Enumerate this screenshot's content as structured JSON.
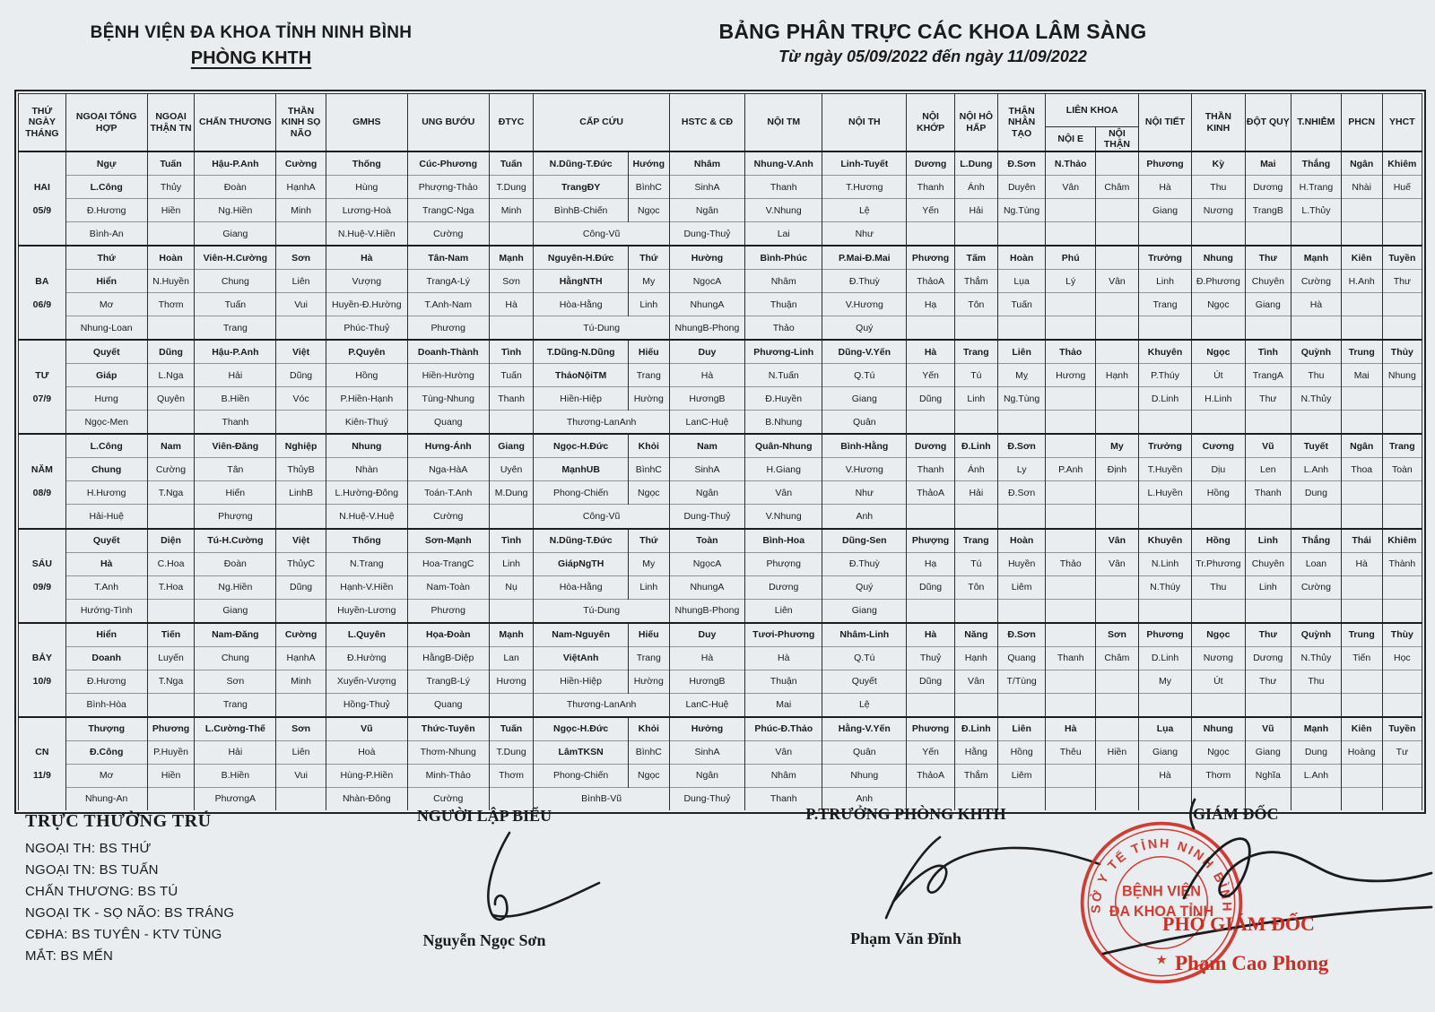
{
  "header": {
    "org": "BỆNH VIỆN ĐA KHOA TỈNH NINH BÌNH",
    "dept": "PHÒNG KHTH",
    "title": "BẢNG PHÂN TRỰC CÁC KHOA LÂM SÀNG",
    "subtitle": "Từ ngày 05/09/2022 đến ngày 11/09/2022"
  },
  "colors": {
    "stamp_red": "#cf2d23",
    "ink": "#1b1b1b",
    "paper": "#e9edf0"
  },
  "table": {
    "headers": [
      "THỨ NGÀY THÁNG",
      "NGOẠI TỔNG HỢP",
      "NGOẠI THẬN TN",
      "CHẤN THƯƠNG",
      "THẦN KINH SỌ NÃO",
      "GMHS",
      "UNG BƯỚU",
      "ĐTYC",
      "CẤP CỨU",
      "HSTC & CĐ",
      "NỘI TM",
      "NỘI TH",
      "NỘI KHỚP",
      "NỘI HÔ HẤP",
      "THẬN NHÂN TẠO",
      "LIÊN KHOA",
      "NỘI E",
      "NỘI THẬN",
      "NỘI TIẾT",
      "THẦN KINH",
      "ĐỘT QUỴ",
      "T.NHIỄM",
      "PHCN",
      "YHCT"
    ],
    "days": [
      {
        "day": "HAI",
        "date": "05/9",
        "rows": [
          [
            "Ngự",
            "Tuấn",
            "Hậu-P.Anh",
            "Cường",
            "Thống",
            "Cúc-Phương",
            "Tuấn",
            "N.Dũng-T.Đức",
            "Hướng",
            "Nhâm",
            "Nhung-V.Anh",
            "Linh-Tuyết",
            "Dương",
            "L.Dung",
            "Đ.Sơn",
            "N.Thảo",
            "",
            "Phương",
            "Kỳ",
            "Mai",
            "Thắng",
            "Ngân",
            "Khiêm"
          ],
          [
            "L.Công",
            "Thủy",
            "Đoàn",
            "HạnhA",
            "Hùng",
            "Phượng-Thảo",
            "T.Dung",
            "TrangĐY",
            "BìnhC",
            "SinhA",
            "Thanh",
            "T.Hương",
            "Thanh",
            "Ánh",
            "Duyên",
            "Vân",
            "Châm",
            "Hà",
            "Thu",
            "Dương",
            "H.Trang",
            "Nhài",
            "Huế"
          ],
          [
            "Đ.Hương",
            "Hiền",
            "Ng.Hiền",
            "Minh",
            "Lương-Hoà",
            "TrangC-Nga",
            "Minh",
            "BìnhB-Chiến",
            "Ngọc",
            "Ngân",
            "V.Nhung",
            "Lệ",
            "Yến",
            "Hải",
            "Ng.Tùng",
            "",
            "",
            "Giang",
            "Nương",
            "TrangB",
            "L.Thủy",
            "",
            ""
          ],
          [
            "Bình-An",
            "",
            "Giang",
            "",
            "N.Huệ-V.Hiền",
            "Cường",
            "",
            "Công-Vũ",
            "",
            "Dung-Thuỷ",
            "Lai",
            "Như",
            "",
            "",
            "",
            "",
            "",
            "",
            "",
            "",
            "",
            "",
            ""
          ]
        ]
      },
      {
        "day": "BA",
        "date": "06/9",
        "rows": [
          [
            "Thứ",
            "Hoàn",
            "Viên-H.Cường",
            "Sơn",
            "Hà",
            "Tân-Nam",
            "Mạnh",
            "Nguyên-H.Đức",
            "Thứ",
            "Hường",
            "Bình-Phúc",
            "P.Mai-Đ.Mai",
            "Phương",
            "Tấm",
            "Hoàn",
            "Phú",
            "",
            "Trưởng",
            "Nhung",
            "Thư",
            "Mạnh",
            "Kiên",
            "Tuyền"
          ],
          [
            "Hiển",
            "N.Huyền",
            "Chung",
            "Liên",
            "Vượng",
            "TrangA-Lý",
            "Sơn",
            "HằngNTH",
            "My",
            "NgọcA",
            "Nhâm",
            "Đ.Thuỳ",
            "ThảoA",
            "Thắm",
            "Lụa",
            "Lý",
            "Vân",
            "Linh",
            "Đ.Phương",
            "Chuyên",
            "Cường",
            "H.Anh",
            "Thư"
          ],
          [
            "Mơ",
            "Thơm",
            "Tuấn",
            "Vui",
            "Huyền-Đ.Hường",
            "T.Anh-Nam",
            "Hà",
            "Hòa-Hằng",
            "Linh",
            "NhungA",
            "Thuận",
            "V.Hương",
            "Hạ",
            "Tôn",
            "Tuấn",
            "",
            "",
            "Trang",
            "Ngọc",
            "Giang",
            "Hà",
            "",
            ""
          ],
          [
            "Nhung-Loan",
            "",
            "Trang",
            "",
            "Phúc-Thuỷ",
            "Phương",
            "",
            "Tú-Dung",
            "",
            "NhungB-Phong",
            "Thảo",
            "Quý",
            "",
            "",
            "",
            "",
            "",
            "",
            "",
            "",
            "",
            "",
            ""
          ]
        ]
      },
      {
        "day": "TƯ",
        "date": "07/9",
        "rows": [
          [
            "Quyết",
            "Dũng",
            "Hậu-P.Anh",
            "Việt",
            "P.Quyên",
            "Doanh-Thành",
            "Tình",
            "T.Dũng-N.Dũng",
            "Hiếu",
            "Duy",
            "Phương-Linh",
            "Dũng-V.Yến",
            "Hà",
            "Trang",
            "Liên",
            "Thảo",
            "",
            "Khuyên",
            "Ngọc",
            "Tình",
            "Quỳnh",
            "Trung",
            "Thủy"
          ],
          [
            "Giáp",
            "L.Nga",
            "Hải",
            "Dũng",
            "Hồng",
            "Hiền-Hường",
            "Tuấn",
            "ThảoNộiTM",
            "Trang",
            "Hà",
            "N.Tuấn",
            "Q.Tú",
            "Yến",
            "Tú",
            "Mỵ",
            "Hương",
            "Hạnh",
            "P.Thúy",
            "Út",
            "TrangA",
            "Thu",
            "Mai",
            "Nhung"
          ],
          [
            "Hưng",
            "Quyên",
            "B.Hiền",
            "Vóc",
            "P.Hiền-Hạnh",
            "Tùng-Nhung",
            "Thanh",
            "Hiền-Hiệp",
            "Hường",
            "HươngB",
            "Đ.Huyền",
            "Giang",
            "Dũng",
            "Linh",
            "Ng.Tùng",
            "",
            "",
            "D.Linh",
            "H.Linh",
            "Thư",
            "N.Thủy",
            "",
            ""
          ],
          [
            "Ngọc-Men",
            "",
            "Thanh",
            "",
            "Kiên-Thuý",
            "Quang",
            "",
            "Thương-LanAnh",
            "",
            "LanC-Huệ",
            "B.Nhung",
            "Quân",
            "",
            "",
            "",
            "",
            "",
            "",
            "",
            "",
            "",
            "",
            ""
          ]
        ]
      },
      {
        "day": "NĂM",
        "date": "08/9",
        "rows": [
          [
            "L.Công",
            "Nam",
            "Viên-Đăng",
            "Nghiệp",
            "Nhung",
            "Hưng-Ánh",
            "Giang",
            "Ngọc-H.Đức",
            "Khỏi",
            "Nam",
            "Quân-Nhung",
            "Bình-Hằng",
            "Dương",
            "Đ.Linh",
            "Đ.Sơn",
            "",
            "My",
            "Trưởng",
            "Cương",
            "Vũ",
            "Tuyết",
            "Ngân",
            "Trang"
          ],
          [
            "Chung",
            "Cường",
            "Tân",
            "ThủyB",
            "Nhàn",
            "Nga-HàA",
            "Uyên",
            "MạnhUB",
            "BìnhC",
            "SinhA",
            "H.Giang",
            "V.Hương",
            "Thanh",
            "Ánh",
            "Ly",
            "P.Anh",
            "Định",
            "T.Huyền",
            "Dịu",
            "Len",
            "L.Anh",
            "Thoa",
            "Toàn"
          ],
          [
            "H.Hương",
            "T.Nga",
            "Hiến",
            "LinhB",
            "L.Hường-Đông",
            "Toán-T.Anh",
            "M.Dung",
            "Phong-Chiến",
            "Ngọc",
            "Ngân",
            "Vân",
            "Như",
            "ThảoA",
            "Hải",
            "Đ.Sơn",
            "",
            "",
            "L.Huyền",
            "Hồng",
            "Thanh",
            "Dung",
            "",
            ""
          ],
          [
            "Hải-Huệ",
            "",
            "Phượng",
            "",
            "N.Huệ-V.Huệ",
            "Cường",
            "",
            "Công-Vũ",
            "",
            "Dung-Thuỷ",
            "V.Nhung",
            "Anh",
            "",
            "",
            "",
            "",
            "",
            "",
            "",
            "",
            "",
            "",
            ""
          ]
        ]
      },
      {
        "day": "SÁU",
        "date": "09/9",
        "rows": [
          [
            "Quyết",
            "Diện",
            "Tú-H.Cường",
            "Việt",
            "Thống",
            "Sơn-Mạnh",
            "Tình",
            "N.Dũng-T.Đức",
            "Thứ",
            "Toàn",
            "Bình-Hoa",
            "Dũng-Sen",
            "Phượng",
            "Trang",
            "Hoàn",
            "",
            "Vân",
            "Khuyên",
            "Hồng",
            "Linh",
            "Thắng",
            "Thái",
            "Khiêm"
          ],
          [
            "Hà",
            "C.Hoa",
            "Đoàn",
            "ThủyC",
            "N.Trang",
            "Hoa-TrangC",
            "Linh",
            "GiápNgTH",
            "My",
            "NgọcA",
            "Phượng",
            "Đ.Thuỳ",
            "Hạ",
            "Tú",
            "Huyền",
            "Thảo",
            "Vân",
            "N.Linh",
            "Tr.Phương",
            "Chuyên",
            "Loan",
            "Hà",
            "Thành"
          ],
          [
            "T.Anh",
            "T.Hoa",
            "Ng.Hiền",
            "Dũng",
            "Hạnh-V.Hiền",
            "Nam-Toàn",
            "Nụ",
            "Hòa-Hằng",
            "Linh",
            "NhungA",
            "Dương",
            "Quý",
            "Dũng",
            "Tôn",
            "Liêm",
            "",
            "",
            "N.Thúy",
            "Thu",
            "Linh",
            "Cường",
            "",
            ""
          ],
          [
            "Hướng-Tình",
            "",
            "Giang",
            "",
            "Huyền-Lương",
            "Phương",
            "",
            "Tú-Dung",
            "",
            "NhungB-Phong",
            "Liên",
            "Giang",
            "",
            "",
            "",
            "",
            "",
            "",
            "",
            "",
            "",
            "",
            ""
          ]
        ]
      },
      {
        "day": "BẢY",
        "date": "10/9",
        "rows": [
          [
            "Hiển",
            "Tiến",
            "Nam-Đăng",
            "Cường",
            "L.Quyên",
            "Họa-Đoàn",
            "Mạnh",
            "Nam-Nguyên",
            "Hiếu",
            "Duy",
            "Tươi-Phương",
            "Nhâm-Linh",
            "Hà",
            "Năng",
            "Đ.Sơn",
            "",
            "Sơn",
            "Phương",
            "Ngọc",
            "Thư",
            "Quỳnh",
            "Trung",
            "Thùy"
          ],
          [
            "Doanh",
            "Luyến",
            "Chung",
            "HạnhA",
            "Đ.Hường",
            "HằngB-Diệp",
            "Lan",
            "ViệtAnh",
            "Trang",
            "Hà",
            "Hà",
            "Q.Tú",
            "Thuỷ",
            "Hạnh",
            "Quang",
            "Thanh",
            "Châm",
            "D.Linh",
            "Nương",
            "Dương",
            "N.Thủy",
            "Tiến",
            "Học"
          ],
          [
            "Đ.Hương",
            "T.Nga",
            "Sơn",
            "Minh",
            "Xuyến-Vượng",
            "TrangB-Lý",
            "Hương",
            "Hiền-Hiệp",
            "Hường",
            "HươngB",
            "Thuận",
            "Quyết",
            "Dũng",
            "Vân",
            "T/Tùng",
            "",
            "",
            "My",
            "Út",
            "Thư",
            "Thu",
            "",
            ""
          ],
          [
            "Bình-Hòa",
            "",
            "Trang",
            "",
            "Hồng-Thuỷ",
            "Quang",
            "",
            "Thương-LanAnh",
            "",
            "LanC-Huệ",
            "Mai",
            "Lệ",
            "",
            "",
            "",
            "",
            "",
            "",
            "",
            "",
            "",
            "",
            ""
          ]
        ]
      },
      {
        "day": "CN",
        "date": "11/9",
        "rows": [
          [
            "Thượng",
            "Phương",
            "L.Cường-Thế",
            "Sơn",
            "Vũ",
            "Thức-Tuyên",
            "Tuấn",
            "Ngọc-H.Đức",
            "Khỏi",
            "Hưởng",
            "Phúc-Đ.Thảo",
            "Hằng-V.Yến",
            "Phương",
            "Đ.Linh",
            "Liên",
            "Hà",
            "",
            "Lụa",
            "Nhung",
            "Vũ",
            "Mạnh",
            "Kiên",
            "Tuyền"
          ],
          [
            "Đ.Công",
            "P.Huyền",
            "Hải",
            "Liên",
            "Hoà",
            "Thơm-Nhung",
            "T.Dung",
            "LâmTKSN",
            "BìnhC",
            "SinhA",
            "Vân",
            "Quân",
            "Yến",
            "Hằng",
            "Hồng",
            "Thêu",
            "Hiền",
            "Giang",
            "Ngọc",
            "Giang",
            "Dung",
            "Hoàng",
            "Tư"
          ],
          [
            "Mơ",
            "Hiền",
            "B.Hiền",
            "Vui",
            "Hùng-P.Hiền",
            "Minh-Thảo",
            "Thơm",
            "Phong-Chiến",
            "Ngọc",
            "Ngân",
            "Nhâm",
            "Nhung",
            "ThảoA",
            "Thắm",
            "Liêm",
            "",
            "",
            "Hà",
            "Thơm",
            "Nghĩa",
            "L.Anh",
            "",
            ""
          ],
          [
            "Nhung-An",
            "",
            "PhươngA",
            "",
            "Nhàn-Đông",
            "Cường",
            "",
            "BìnhB-Vũ",
            "",
            "Dung-Thuỷ",
            "Thanh",
            "Anh",
            "",
            "",
            "",
            "",
            "",
            "",
            "",
            "",
            "",
            "",
            ""
          ]
        ]
      }
    ]
  },
  "footer": {
    "resident_title": "TRỰC THƯỜNG TRÚ",
    "resident_lines": [
      "NGOẠI TH: BS THỨ",
      "NGOẠI TN: BS TUẤN",
      "CHẤN THƯƠNG: BS TÚ",
      "NGOẠI TK - SỌ NÃO: BS TRÁNG",
      "CĐHA: BS TUYÊN - KTV TÙNG",
      "MẮT: BS MẾN"
    ],
    "preparer_title": "NGƯỜI LẬP BIỂU",
    "preparer_name": "Nguyễn Ngọc Sơn",
    "deputy_head_title": "P.TRƯỞNG PHÒNG KHTH",
    "deputy_head_name": "Phạm Văn Đĩnh",
    "director_title": "GIÁM ĐỐC",
    "deputy_director_title": "PHÓ GIÁM ĐỐC",
    "deputy_director_name": "Phạm Cao Phong"
  },
  "stamp": {
    "ring_text": "SỞ Y TẾ TỈNH NINH BÌNH",
    "center_line1": "BỆNH VIỆN",
    "center_line2": "ĐA KHOA TỈNH",
    "star": "★"
  }
}
